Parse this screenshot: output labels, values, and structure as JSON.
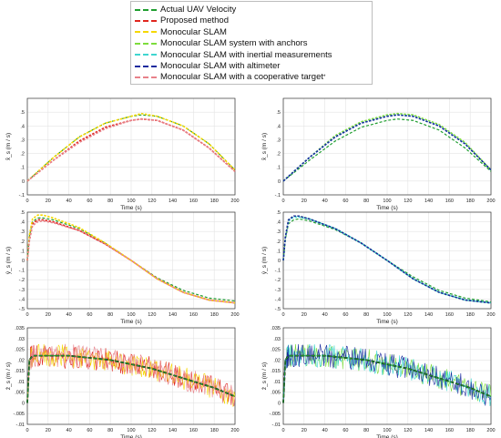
{
  "legend": [
    {
      "label": "Actual UAV Velocity",
      "color": "#1f9e2f"
    },
    {
      "label": "Proposed method",
      "color": "#e0261e"
    },
    {
      "label": "Monocular SLAM",
      "color": "#f5d800"
    },
    {
      "label": "Monocular SLAM system with anchors",
      "color": "#7ddc3c"
    },
    {
      "label": "Monocular SLAM with inertial measurements",
      "color": "#3fd6d0"
    },
    {
      "label": "Monocular SLAM with altimeter",
      "color": "#1b2a9e"
    },
    {
      "label": "Monocular SLAM with a cooperative target",
      "color": "#e8818a",
      "suffix": "*"
    }
  ],
  "chart_data": [
    {
      "type": "line",
      "id": "x-left",
      "xlabel": "Time (s)",
      "ylabel": "x̂_s (m / s)",
      "xlim": [
        0,
        200
      ],
      "ylim": [
        -0.1,
        0.6
      ],
      "xticks": [
        0,
        20,
        40,
        60,
        80,
        100,
        120,
        140,
        160,
        180,
        200
      ],
      "yticks": [
        -0.1,
        0,
        0.1,
        0.2,
        0.3,
        0.4,
        0.5
      ],
      "series": [
        {
          "name": "Actual UAV Velocity",
          "color": "#1f9e2f",
          "x": [
            0,
            25,
            50,
            75,
            100,
            110,
            125,
            150,
            175,
            200
          ],
          "y": [
            0.0,
            0.17,
            0.32,
            0.42,
            0.47,
            0.48,
            0.47,
            0.4,
            0.27,
            0.08
          ]
        },
        {
          "name": "Proposed method",
          "color": "#e0261e",
          "x": [
            0,
            25,
            50,
            75,
            100,
            110,
            125,
            150,
            175,
            200
          ],
          "y": [
            0.0,
            0.15,
            0.29,
            0.39,
            0.44,
            0.45,
            0.44,
            0.37,
            0.24,
            0.07
          ]
        },
        {
          "name": "Monocular SLAM",
          "color": "#f5d800",
          "x": [
            0,
            25,
            50,
            75,
            100,
            110,
            125,
            150,
            175,
            200
          ],
          "y": [
            0.0,
            0.17,
            0.32,
            0.42,
            0.47,
            0.49,
            0.47,
            0.4,
            0.27,
            0.08
          ]
        },
        {
          "name": "Monocular SLAM with a cooperative target",
          "color": "#e8818a",
          "x": [
            0,
            25,
            50,
            75,
            100,
            110,
            125,
            150,
            175,
            200
          ],
          "y": [
            0.0,
            0.15,
            0.28,
            0.38,
            0.44,
            0.45,
            0.44,
            0.37,
            0.24,
            0.07
          ]
        }
      ]
    },
    {
      "type": "line",
      "id": "x-right",
      "xlabel": "Time (s)",
      "ylabel": "x̂_s (m / s)",
      "xlim": [
        0,
        200
      ],
      "ylim": [
        -0.1,
        0.6
      ],
      "xticks": [
        0,
        20,
        40,
        60,
        80,
        100,
        120,
        140,
        160,
        180,
        200
      ],
      "yticks": [
        -0.1,
        0,
        0.1,
        0.2,
        0.3,
        0.4,
        0.5
      ],
      "series": [
        {
          "name": "Actual UAV Velocity",
          "color": "#1f9e2f",
          "x": [
            0,
            25,
            50,
            75,
            100,
            110,
            125,
            150,
            175,
            200
          ],
          "y": [
            0.0,
            0.15,
            0.29,
            0.39,
            0.44,
            0.45,
            0.44,
            0.37,
            0.24,
            0.07
          ]
        },
        {
          "name": "Monocular SLAM system with anchors",
          "color": "#7ddc3c",
          "x": [
            0,
            25,
            50,
            75,
            100,
            110,
            125,
            150,
            175,
            200
          ],
          "y": [
            0.0,
            0.17,
            0.33,
            0.43,
            0.48,
            0.49,
            0.48,
            0.41,
            0.28,
            0.08
          ]
        },
        {
          "name": "Monocular SLAM with inertial measurements",
          "color": "#3fd6d0",
          "x": [
            0,
            25,
            50,
            75,
            100,
            110,
            125,
            150,
            175,
            200
          ],
          "y": [
            0.0,
            0.17,
            0.32,
            0.42,
            0.47,
            0.48,
            0.47,
            0.4,
            0.27,
            0.08
          ]
        },
        {
          "name": "Monocular SLAM with altimeter",
          "color": "#1b2a9e",
          "x": [
            0,
            25,
            50,
            75,
            100,
            110,
            125,
            150,
            175,
            200
          ],
          "y": [
            0.0,
            0.17,
            0.32,
            0.42,
            0.47,
            0.48,
            0.47,
            0.4,
            0.27,
            0.08
          ]
        }
      ]
    },
    {
      "type": "line",
      "id": "y-left",
      "xlabel": "Time (s)",
      "ylabel": "ŷ_s (m / s)",
      "xlim": [
        0,
        200
      ],
      "ylim": [
        -0.5,
        0.5
      ],
      "xticks": [
        0,
        20,
        40,
        60,
        80,
        100,
        120,
        140,
        160,
        180,
        200
      ],
      "yticks": [
        -0.5,
        -0.4,
        -0.3,
        -0.2,
        -0.1,
        0,
        0.1,
        0.2,
        0.3,
        0.4,
        0.5
      ],
      "series": [
        {
          "name": "Actual UAV Velocity",
          "color": "#1f9e2f",
          "x": [
            0,
            2,
            5,
            10,
            15,
            25,
            50,
            75,
            100,
            125,
            150,
            175,
            200
          ],
          "y": [
            0.0,
            0.25,
            0.4,
            0.44,
            0.44,
            0.42,
            0.33,
            0.18,
            0.0,
            -0.18,
            -0.31,
            -0.39,
            -0.42
          ]
        },
        {
          "name": "Proposed method",
          "color": "#e0261e",
          "x": [
            0,
            2,
            5,
            10,
            15,
            25,
            50,
            75,
            100,
            125,
            150,
            175,
            200
          ],
          "y": [
            0.0,
            0.22,
            0.38,
            0.42,
            0.42,
            0.4,
            0.31,
            0.17,
            0.0,
            -0.19,
            -0.33,
            -0.41,
            -0.44
          ]
        },
        {
          "name": "Monocular SLAM",
          "color": "#f5d800",
          "x": [
            0,
            2,
            5,
            10,
            15,
            25,
            50,
            75,
            100,
            125,
            150,
            175,
            200
          ],
          "y": [
            0.0,
            0.26,
            0.43,
            0.47,
            0.47,
            0.44,
            0.34,
            0.18,
            0.0,
            -0.19,
            -0.33,
            -0.41,
            -0.44
          ]
        },
        {
          "name": "Monocular SLAM with a cooperative target",
          "color": "#e8818a",
          "x": [
            0,
            2,
            5,
            10,
            15,
            25,
            50,
            75,
            100,
            125,
            150,
            175,
            200
          ],
          "y": [
            0.0,
            0.2,
            0.36,
            0.4,
            0.41,
            0.39,
            0.31,
            0.17,
            0.0,
            -0.19,
            -0.33,
            -0.41,
            -0.44
          ]
        }
      ]
    },
    {
      "type": "line",
      "id": "y-right",
      "xlabel": "Time (s)",
      "ylabel": "ŷ_s (m / s)",
      "xlim": [
        0,
        200
      ],
      "ylim": [
        -0.5,
        0.5
      ],
      "xticks": [
        0,
        20,
        40,
        60,
        80,
        100,
        120,
        140,
        160,
        180,
        200
      ],
      "yticks": [
        -0.5,
        -0.4,
        -0.3,
        -0.2,
        -0.1,
        0,
        0.1,
        0.2,
        0.3,
        0.4,
        0.5
      ],
      "series": [
        {
          "name": "Actual UAV Velocity",
          "color": "#1f9e2f",
          "x": [
            0,
            2,
            5,
            10,
            15,
            25,
            50,
            75,
            100,
            125,
            150,
            175,
            200
          ],
          "y": [
            0.0,
            0.22,
            0.38,
            0.42,
            0.43,
            0.41,
            0.32,
            0.18,
            0.0,
            -0.17,
            -0.31,
            -0.39,
            -0.43
          ]
        },
        {
          "name": "Monocular SLAM system with anchors",
          "color": "#7ddc3c",
          "x": [
            0,
            2,
            5,
            10,
            15,
            25,
            50,
            75,
            100,
            125,
            150,
            175,
            200
          ],
          "y": [
            0.0,
            0.24,
            0.42,
            0.46,
            0.46,
            0.43,
            0.33,
            0.18,
            0.0,
            -0.19,
            -0.33,
            -0.41,
            -0.44
          ]
        },
        {
          "name": "Monocular SLAM with inertial measurements",
          "color": "#3fd6d0",
          "x": [
            0,
            2,
            5,
            10,
            15,
            25,
            50,
            75,
            100,
            125,
            150,
            175,
            200
          ],
          "y": [
            0.0,
            0.24,
            0.41,
            0.45,
            0.45,
            0.43,
            0.33,
            0.18,
            0.0,
            -0.19,
            -0.33,
            -0.41,
            -0.44
          ]
        },
        {
          "name": "Monocular SLAM with altimeter",
          "color": "#1b2a9e",
          "x": [
            0,
            2,
            5,
            10,
            15,
            25,
            50,
            75,
            100,
            125,
            150,
            175,
            200
          ],
          "y": [
            0.0,
            0.24,
            0.42,
            0.46,
            0.46,
            0.43,
            0.33,
            0.18,
            0.0,
            -0.19,
            -0.33,
            -0.41,
            -0.44
          ]
        }
      ]
    },
    {
      "type": "line",
      "id": "z-left",
      "xlabel": "Time (s)",
      "ylabel": "ẑ_s (m / s)",
      "xlim": [
        0,
        200
      ],
      "ylim": [
        -0.01,
        0.035
      ],
      "xticks": [
        0,
        20,
        40,
        60,
        80,
        100,
        120,
        140,
        160,
        180,
        200
      ],
      "yticks": [
        -0.01,
        -0.005,
        0,
        0.005,
        0.01,
        0.015,
        0.02,
        0.025,
        0.03,
        0.035
      ],
      "series": [
        {
          "name": "Actual UAV Velocity",
          "color": "#1f9e2f",
          "x": [
            0,
            2,
            5,
            20,
            40,
            60,
            80,
            100,
            120,
            140,
            160,
            180,
            200
          ],
          "y": [
            0.0,
            0.02,
            0.022,
            0.022,
            0.022,
            0.021,
            0.02,
            0.018,
            0.016,
            0.013,
            0.01,
            0.007,
            0.003
          ]
        },
        {
          "name": "Proposed method",
          "color": "#e0261e",
          "x": [
            0,
            2,
            5,
            20,
            40,
            60,
            80,
            100,
            120,
            140,
            160,
            180,
            200
          ],
          "y": [
            0.0,
            0.02,
            0.022,
            0.021,
            0.021,
            0.021,
            0.02,
            0.018,
            0.016,
            0.013,
            0.01,
            0.007,
            0.003
          ]
        },
        {
          "name": "Monocular SLAM",
          "color": "#f5d800",
          "x": [
            0,
            2,
            5,
            20,
            40,
            60,
            80,
            100,
            120,
            140,
            160,
            180,
            200
          ],
          "y": [
            0.0,
            0.02,
            0.022,
            0.022,
            0.022,
            0.021,
            0.02,
            0.018,
            0.016,
            0.013,
            0.01,
            0.007,
            0.003
          ]
        },
        {
          "name": "Monocular SLAM with a cooperative target",
          "color": "#e8818a",
          "x": [
            0,
            2,
            5,
            20,
            40,
            60,
            80,
            100,
            120,
            140,
            160,
            180,
            200
          ],
          "y": [
            0.0,
            0.02,
            0.022,
            0.022,
            0.022,
            0.021,
            0.02,
            0.018,
            0.016,
            0.013,
            0.01,
            0.007,
            0.003
          ]
        }
      ]
    },
    {
      "type": "line",
      "id": "z-right",
      "xlabel": "Time (s)",
      "ylabel": "ẑ_s (m / s)",
      "xlim": [
        0,
        200
      ],
      "ylim": [
        -0.01,
        0.035
      ],
      "xticks": [
        0,
        20,
        40,
        60,
        80,
        100,
        120,
        140,
        160,
        180,
        200
      ],
      "yticks": [
        -0.01,
        -0.005,
        0,
        0.005,
        0.01,
        0.015,
        0.02,
        0.025,
        0.03,
        0.035
      ],
      "series": [
        {
          "name": "Actual UAV Velocity",
          "color": "#1f9e2f",
          "x": [
            0,
            2,
            5,
            20,
            40,
            60,
            80,
            100,
            120,
            140,
            160,
            180,
            200
          ],
          "y": [
            0.0,
            0.02,
            0.022,
            0.022,
            0.022,
            0.021,
            0.02,
            0.018,
            0.016,
            0.013,
            0.01,
            0.007,
            0.003
          ]
        },
        {
          "name": "Monocular SLAM system with anchors",
          "color": "#7ddc3c",
          "x": [
            0,
            2,
            5,
            20,
            40,
            60,
            80,
            100,
            120,
            140,
            160,
            180,
            200
          ],
          "y": [
            0.0,
            0.02,
            0.022,
            0.022,
            0.022,
            0.021,
            0.02,
            0.018,
            0.016,
            0.013,
            0.01,
            0.007,
            0.003
          ]
        },
        {
          "name": "Monocular SLAM with inertial measurements",
          "color": "#3fd6d0",
          "x": [
            0,
            2,
            5,
            20,
            40,
            60,
            80,
            100,
            120,
            140,
            160,
            180,
            200
          ],
          "y": [
            0.0,
            0.02,
            0.022,
            0.022,
            0.022,
            0.021,
            0.02,
            0.018,
            0.016,
            0.013,
            0.01,
            0.007,
            0.003
          ]
        },
        {
          "name": "Monocular SLAM with altimeter",
          "color": "#1b2a9e",
          "x": [
            0,
            2,
            5,
            20,
            40,
            60,
            80,
            100,
            120,
            140,
            160,
            180,
            200
          ],
          "y": [
            0.0,
            0.02,
            0.022,
            0.022,
            0.022,
            0.021,
            0.02,
            0.018,
            0.016,
            0.013,
            0.01,
            0.007,
            0.003
          ]
        }
      ]
    }
  ]
}
